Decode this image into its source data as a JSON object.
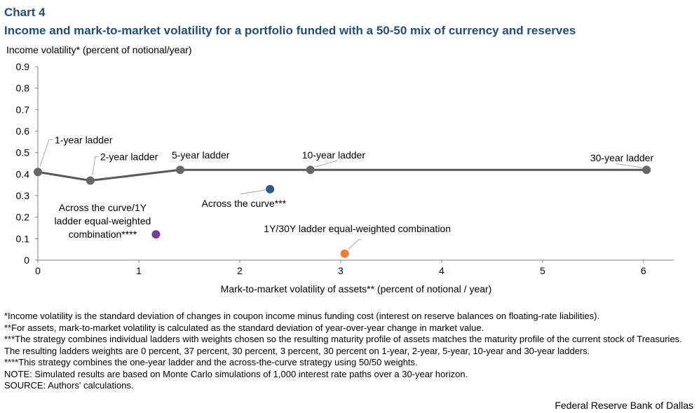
{
  "header": {
    "chart_label": "Chart 4",
    "title": "Income and mark-to-market volatility for a portfolio funded with a 50-50 mix of currency and reserves"
  },
  "colors": {
    "title": "#1f4e79",
    "line": "#595959",
    "ladder_marker": "#666666",
    "across_curve": "#2e5a8c",
    "combo_1y": "#7a3e98",
    "combo_1y30y": "#ed7d31"
  },
  "chart_data": {
    "type": "scatter",
    "xlabel": "Mark-to-market volatility of assets** (percent of notional / year)",
    "ylabel": "Income volatility* (percent of notional/year)",
    "xlim": [
      0,
      6.3
    ],
    "ylim": [
      0,
      0.9
    ],
    "x_ticks": [
      "0",
      "1",
      "2",
      "3",
      "4",
      "5",
      "6"
    ],
    "y_ticks": [
      "0",
      "0.1",
      "0.2",
      "0.3",
      "0.4",
      "0.5",
      "0.6",
      "0.7",
      "0.8",
      "0.9"
    ],
    "grid": false,
    "series": [
      {
        "type": "line",
        "points": [
          {
            "label": "1-year ladder",
            "x": 0.0,
            "y": 0.41
          },
          {
            "label": "2-year ladder",
            "x": 0.52,
            "y": 0.37
          },
          {
            "label": "5-year ladder",
            "x": 1.41,
            "y": 0.42
          },
          {
            "label": "10-year ladder",
            "x": 2.7,
            "y": 0.42
          },
          {
            "label": "30-year ladder",
            "x": 6.03,
            "y": 0.42
          }
        ]
      },
      {
        "type": "scatter",
        "points": [
          {
            "label": "Across the curve***",
            "x": 2.3,
            "y": 0.33
          },
          {
            "label_lines": [
              "Across the curve/1Y",
              "ladder equal-weighted",
              "combination****"
            ],
            "x": 1.17,
            "y": 0.12
          },
          {
            "label": "1Y/30Y  ladder equal-weighted combination",
            "x": 3.04,
            "y": 0.03
          }
        ]
      }
    ]
  },
  "notes": [
    "*Income volatility is the standard deviation of changes in coupon income minus funding cost (interest on reserve balances on floating-rate liabilities).",
    "**For assets, mark-to-market volatility is calculated as the standard deviation of year-over-year change in market value.",
    "***The strategy combines individual ladders with weights chosen so the resulting maturity profile of assets matches the maturity profile of the current stock of Treasuries. The resulting ladders weights are 0 percent, 37 percent, 30 percent, 3 percent, 30 percent on 1-year, 2-year, 5-year, 10-year and 30-year ladders.",
    "****This strategy combines the one-year ladder and the across-the-curve strategy using 50/50 weights.",
    "NOTE: Simulated results are based on Monte Carlo simulations of 1,000 interest rate paths over a 30-year horizon.",
    "SOURCE: Authors' calculations."
  ],
  "credit": "Federal Reserve Bank of Dallas"
}
